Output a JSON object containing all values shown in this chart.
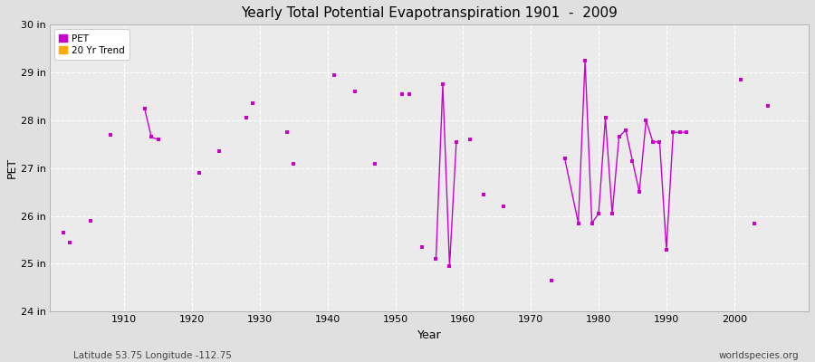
{
  "title": "Yearly Total Potential Evapotranspiration 1901  -  2009",
  "xlabel": "Year",
  "ylabel": "PET",
  "bottom_left_label": "Latitude 53.75 Longitude -112.75",
  "bottom_right_label": "worldspecies.org",
  "background_color": "#e0e0e0",
  "plot_bg_color": "#ebebeb",
  "grid_color": "#ffffff",
  "legend_entries": [
    "PET",
    "20 Yr Trend"
  ],
  "legend_marker_colors": [
    "#cc00cc",
    "#ffaa00"
  ],
  "pet_color": "#cc00cc",
  "trend_color": "#ffaa00",
  "ylim": [
    24,
    30
  ],
  "ytick_labels": [
    "24 in",
    "25 in",
    "26 in",
    "27 in",
    "28 in",
    "29 in",
    "30 in"
  ],
  "ytick_values": [
    24,
    25,
    26,
    27,
    28,
    29,
    30
  ],
  "xlim": [
    1899,
    2011
  ],
  "xtick_values": [
    1910,
    1920,
    1930,
    1940,
    1950,
    1960,
    1970,
    1980,
    1990,
    2000
  ],
  "scatter_years": [
    1901,
    1902,
    1905,
    1908,
    1921,
    1924,
    1928,
    1929,
    1934,
    1935,
    1941,
    1944,
    1947,
    1951,
    1952,
    1954,
    1961,
    1963,
    1966,
    1973,
    2001,
    2003,
    2005
  ],
  "scatter_values": [
    25.65,
    25.45,
    25.9,
    27.7,
    26.9,
    27.35,
    28.05,
    28.35,
    27.75,
    27.1,
    28.95,
    28.6,
    27.1,
    28.55,
    28.55,
    25.35,
    27.6,
    26.45,
    26.2,
    24.65,
    28.85,
    25.85,
    28.3
  ],
  "line_segments": [
    {
      "years": [
        1913,
        1914,
        1915
      ],
      "values": [
        28.25,
        27.65,
        27.6
      ]
    },
    {
      "years": [
        1956,
        1957,
        1958,
        1959
      ],
      "values": [
        25.1,
        28.75,
        24.95,
        27.55
      ]
    },
    {
      "years": [
        1975,
        1977,
        1978,
        1979,
        1980,
        1981,
        1982,
        1983,
        1984,
        1985,
        1986,
        1987,
        1988,
        1989,
        1990,
        1991,
        1992,
        1993
      ],
      "values": [
        27.2,
        25.85,
        29.25,
        25.85,
        26.05,
        28.05,
        26.05,
        27.65,
        27.8,
        27.15,
        26.5,
        28.0,
        27.55,
        27.55,
        25.3,
        27.75,
        27.75,
        27.75
      ]
    }
  ]
}
